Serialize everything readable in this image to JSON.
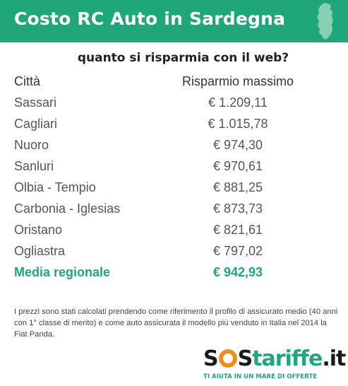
{
  "header": {
    "title": "Costo RC Auto in Sardegna",
    "region_icon": "sardinia-map-icon",
    "accent_color": "#1fa679"
  },
  "subtitle": "quanto si risparmia con il web?",
  "table": {
    "columns": [
      "Città",
      "Risparmio massimo"
    ],
    "rows": [
      {
        "city": "Sassari",
        "value": "€ 1.209,11"
      },
      {
        "city": "Cagliari",
        "value": "€ 1.015,78"
      },
      {
        "city": "Nuoro",
        "value": "€ 974,30"
      },
      {
        "city": "Sanluri",
        "value": "€ 970,61"
      },
      {
        "city": "Olbia - Tempio",
        "value": "€ 881,25"
      },
      {
        "city": "Carbonia - Iglesias",
        "value": "€ 873,73"
      },
      {
        "city": "Oristano",
        "value": "€ 821,61"
      },
      {
        "city": "Ogliastra",
        "value": "€ 797,02"
      }
    ],
    "average": {
      "city": "Media regionale",
      "value": "€ 942,93"
    }
  },
  "note": "I prezzi sono stati calcolati prendendo come riferimento il profilo di assicurato medio (40 anni con 1° classe di merito) e come auto assicurata il modello più venduto in Italia nel 2014 la Fiat Panda.",
  "logo": {
    "part1": "S",
    "part2": "S",
    "part3": "tariffe",
    "part4": ".it",
    "tagline": "TI AIUTA IN UN MARE DI OFFERTE",
    "orange": "#f28c1e"
  }
}
